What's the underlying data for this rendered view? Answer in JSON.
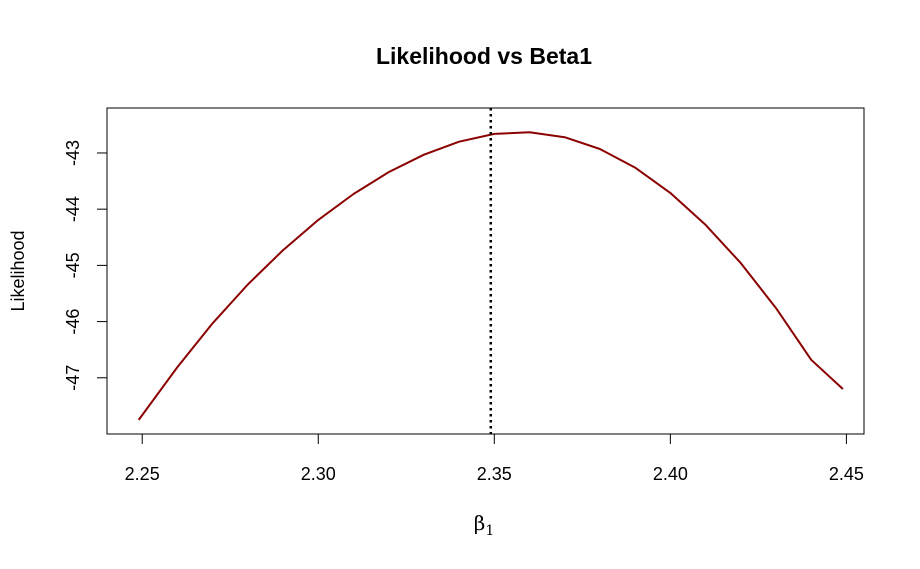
{
  "chart_data": {
    "type": "line",
    "title": "Likelihood vs Beta1",
    "xlabel_symbol": "β",
    "xlabel_subscript": "1",
    "ylabel": "Likelihood",
    "xlim": [
      2.24,
      2.455
    ],
    "ylim": [
      -48.0,
      -42.2
    ],
    "x_ticks": [
      2.25,
      2.3,
      2.35,
      2.4,
      2.45
    ],
    "x_tick_labels": [
      "2.25",
      "2.30",
      "2.35",
      "2.40",
      "2.45"
    ],
    "y_ticks": [
      -47,
      -46,
      -45,
      -44,
      -43
    ],
    "y_tick_labels": [
      "-47",
      "-46",
      "-45",
      "-44",
      "-43"
    ],
    "grid": false,
    "legend": "none",
    "series": [
      {
        "color": "#8b0000",
        "x": [
          2.249,
          2.26,
          2.27,
          2.28,
          2.29,
          2.3,
          2.31,
          2.32,
          2.33,
          2.34,
          2.35,
          2.36,
          2.37,
          2.38,
          2.39,
          2.4,
          2.41,
          2.42,
          2.43,
          2.44,
          2.449
        ],
        "y": [
          -47.75,
          -46.81,
          -46.03,
          -45.34,
          -44.73,
          -44.19,
          -43.73,
          -43.34,
          -43.03,
          -42.8,
          -42.66,
          -42.63,
          -42.72,
          -42.93,
          -43.26,
          -43.71,
          -44.28,
          -44.96,
          -45.76,
          -46.68,
          -47.2
        ]
      }
    ],
    "vline": {
      "x": 2.349,
      "style": "dotted",
      "color": "#000000"
    }
  }
}
